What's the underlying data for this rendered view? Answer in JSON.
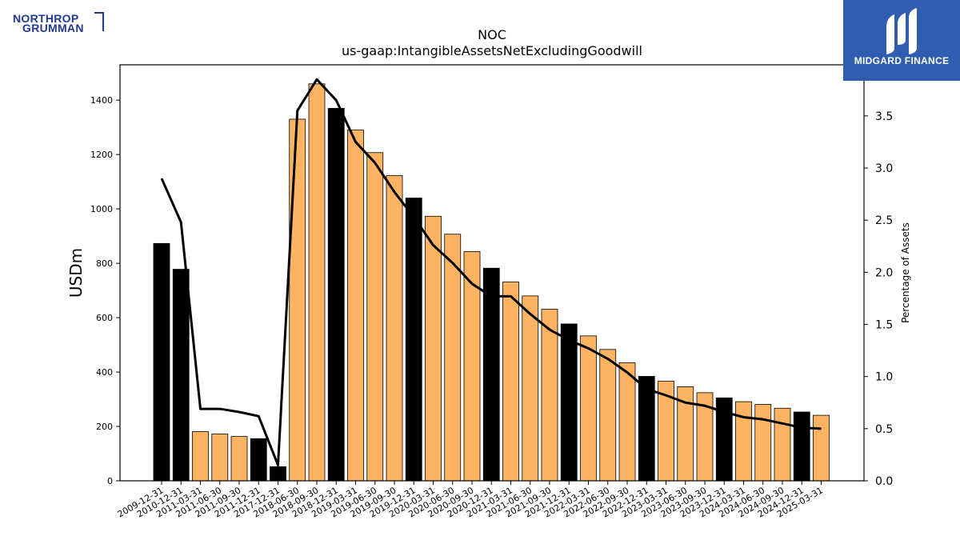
{
  "logos": {
    "left_line1": "NORTHROP",
    "left_line2": "GRUMMAN",
    "right_brand": "MIDGARD FINANCE"
  },
  "colors": {
    "annual_bar": "#000000",
    "quarter_bar": "#fdb462",
    "line": "#000000",
    "brand_blue": "#2f5db0"
  },
  "chart_data": {
    "type": "bar",
    "title": "NOC",
    "subtitle": "us-gaap:IntangibleAssetsNetExcludingGoodwill",
    "ylabel": "USDm",
    "y2label": "Percentage of Assets",
    "ylim": [
      0,
      1530
    ],
    "y2lim": [
      0,
      3.99
    ],
    "yticks": [
      0,
      200,
      400,
      600,
      800,
      1000,
      1200,
      1400
    ],
    "y2ticks": [
      "0.0",
      "0.5",
      "1.0",
      "1.5",
      "2.0",
      "2.5",
      "3.0",
      "3.5"
    ],
    "categories": [
      "2009-12-31",
      "2010-12-31",
      "2011-03-31",
      "2011-06-30",
      "2011-09-30",
      "2011-12-31",
      "2017-12-31",
      "2018-06-30",
      "2018-09-30",
      "2018-12-31",
      "2019-03-31",
      "2019-06-30",
      "2019-09-30",
      "2019-12-31",
      "2020-03-31",
      "2020-06-30",
      "2020-09-30",
      "2020-12-31",
      "2021-03-31",
      "2021-06-30",
      "2021-09-30",
      "2021-12-31",
      "2022-03-31",
      "2022-06-30",
      "2022-09-30",
      "2022-12-31",
      "2023-03-31",
      "2023-06-30",
      "2023-09-30",
      "2023-12-31",
      "2024-03-31",
      "2024-06-30",
      "2024-09-30",
      "2024-12-31",
      "2025-03-31"
    ],
    "bar_kind": [
      "annual",
      "annual",
      "quarter",
      "quarter",
      "quarter",
      "annual",
      "annual",
      "quarter",
      "quarter",
      "annual",
      "quarter",
      "quarter",
      "quarter",
      "annual",
      "quarter",
      "quarter",
      "quarter",
      "annual",
      "quarter",
      "quarter",
      "quarter",
      "annual",
      "quarter",
      "quarter",
      "quarter",
      "annual",
      "quarter",
      "quarter",
      "quarter",
      "annual",
      "quarter",
      "quarter",
      "quarter",
      "annual",
      "quarter"
    ],
    "series": [
      {
        "values": [
          873,
          778,
          181,
          172,
          163,
          155,
          52,
          1330,
          1460,
          1370,
          1290,
          1207,
          1123,
          1040,
          973,
          907,
          843,
          782,
          731,
          680,
          631,
          577,
          533,
          483,
          434,
          384,
          366,
          346,
          324,
          305,
          291,
          281,
          267,
          253,
          241
        ]
      },
      {
        "axis": "right",
        "type": "line",
        "values": [
          2.9,
          2.48,
          0.69,
          0.69,
          0.66,
          0.62,
          0.15,
          3.55,
          3.85,
          3.65,
          3.25,
          3.05,
          2.77,
          2.53,
          2.26,
          2.09,
          1.89,
          1.77,
          1.77,
          1.6,
          1.45,
          1.35,
          1.27,
          1.17,
          1.04,
          0.88,
          0.82,
          0.75,
          0.72,
          0.66,
          0.61,
          0.59,
          0.55,
          0.51,
          0.5
        ]
      }
    ]
  }
}
